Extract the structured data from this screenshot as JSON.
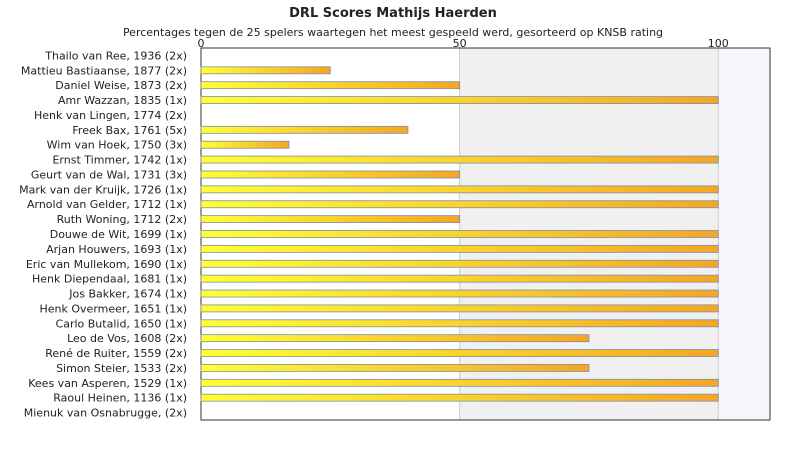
{
  "chart_data": {
    "type": "bar",
    "orientation": "horizontal",
    "title": "DRL Scores Mathijs Haerden",
    "subtitle": "Percentages tegen de 25 spelers waartegen het meest gespeeld werd, gesorteerd op KNSB rating",
    "xlim": [
      0,
      110
    ],
    "xticks": [
      0,
      50,
      100
    ],
    "grid": true,
    "categories": [
      "Thailo van Ree, 1936 (2x)",
      "Mattieu Bastiaanse, 1877 (2x)",
      "Daniel Weise, 1873 (2x)",
      "Amr Wazzan, 1835 (1x)",
      "Henk van Lingen, 1774 (2x)",
      "Freek Bax, 1761 (5x)",
      "Wim van Hoek, 1750 (3x)",
      "Ernst Timmer, 1742 (1x)",
      "Geurt van de Wal, 1731 (3x)",
      "Mark van der Kruijk, 1726 (1x)",
      "Arnold van Gelder, 1712 (1x)",
      "Ruth Woning, 1712 (2x)",
      "Douwe de Wit, 1699 (1x)",
      "Arjan Houwers, 1693 (1x)",
      "Eric van Mullekom, 1690 (1x)",
      "Henk Diependaal, 1681 (1x)",
      "Jos Bakker, 1674 (1x)",
      "Henk Overmeer, 1651 (1x)",
      "Carlo Butalid, 1650 (1x)",
      "Leo de Vos, 1608 (2x)",
      "René de Ruiter, 1559 (2x)",
      "Simon Steier, 1533 (2x)",
      "Kees van Asperen, 1529 (1x)",
      "Raoul Heinen, 1136 (1x)",
      "Mienuk van Osnabrugge,  (2x)"
    ],
    "values": [
      0,
      25,
      50,
      100,
      0,
      40,
      17,
      100,
      50,
      100,
      100,
      50,
      100,
      100,
      100,
      100,
      100,
      100,
      100,
      75,
      100,
      75,
      100,
      100,
      0
    ]
  },
  "colors": {
    "bar_start": "#ffff33",
    "bar_end": "#f5a623",
    "bar_stroke": "#7a8fb0",
    "band_light": "#f0f0f0",
    "band_lighter": "#f6f7fa",
    "axis": "#333333",
    "grid": "#cccccc"
  }
}
